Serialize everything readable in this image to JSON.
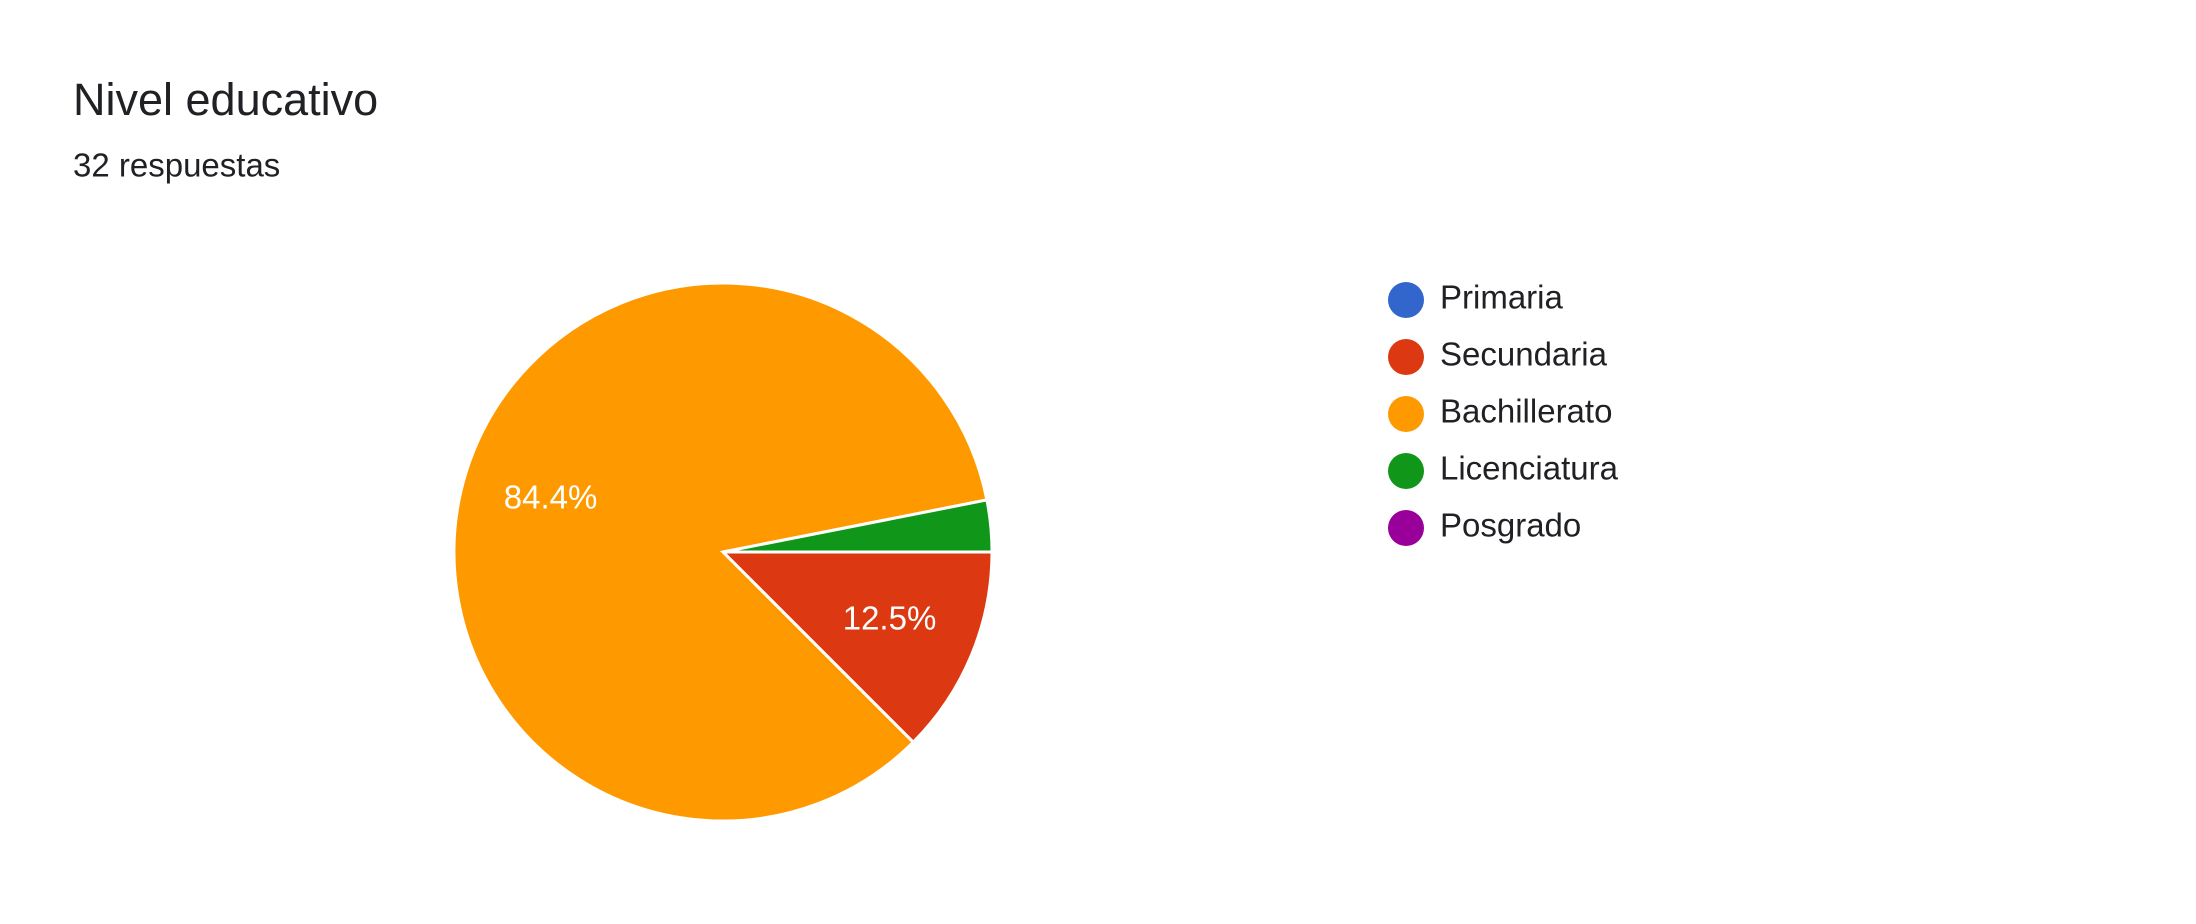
{
  "chart_data": {
    "type": "pie",
    "title": "Nivel educativo",
    "subtitle": "32 respuestas",
    "categories": [
      "Primaria",
      "Secundaria",
      "Bachillerato",
      "Licenciatura",
      "Posgrado"
    ],
    "values": [
      0,
      12.5,
      84.4,
      3.1,
      0
    ],
    "value_labels": [
      null,
      "12.5%",
      "84.4%",
      null,
      null
    ],
    "colors": [
      "#3366cc",
      "#dc3912",
      "#ff9900",
      "#109618",
      "#990099"
    ],
    "legend": "right"
  }
}
